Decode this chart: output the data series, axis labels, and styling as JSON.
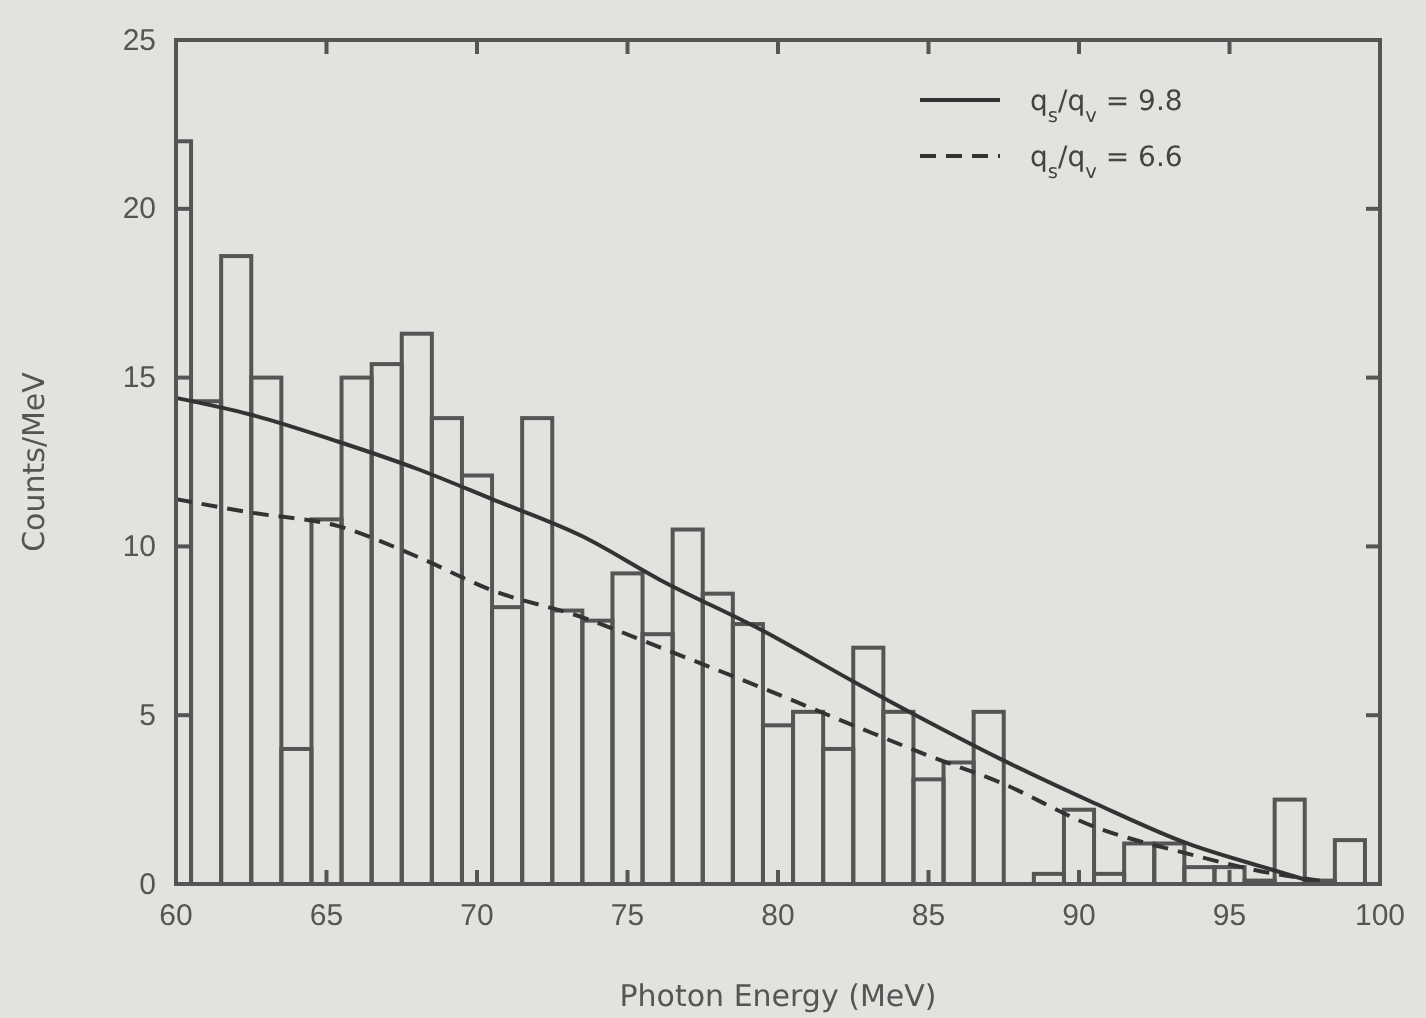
{
  "chart_data": {
    "type": "histogram",
    "xlabel": "Photon Energy (MeV)",
    "ylabel": "Counts/MeV",
    "bins": [
      60,
      60.5,
      61.5,
      62.5,
      63.5,
      64.5,
      65.5,
      66.5,
      67.5,
      68.5,
      69.5,
      70.5,
      71.5,
      72.5,
      73.5,
      74.5,
      75.5,
      76.5,
      77.5,
      78.5,
      79.5,
      80.5,
      81.5,
      82.5,
      83.5,
      84.5,
      85.5,
      86.5,
      87.5,
      88.5,
      89.5,
      90.5,
      91.5,
      92.5,
      93.5,
      94.5,
      95.5,
      96.5,
      97.5,
      98.5,
      99.5
    ],
    "values": [
      22,
      14.3,
      18.6,
      15.0,
      4.0,
      10.8,
      15.0,
      15.4,
      16.3,
      13.8,
      12.1,
      8.2,
      13.8,
      8.1,
      7.8,
      9.2,
      7.4,
      10.5,
      8.6,
      7.7,
      4.7,
      5.1,
      4.0,
      7.0,
      5.1,
      3.1,
      3.6,
      5.1,
      0,
      0.3,
      2.2,
      0.3,
      1.2,
      1.2,
      0.5,
      0.5,
      0.1,
      2.5,
      0.1,
      1.3
    ],
    "color": "#555555",
    "xlim": [
      60,
      100
    ],
    "ylim": [
      0,
      25
    ],
    "xticks": [
      60,
      65,
      70,
      75,
      80,
      85,
      90,
      95,
      100
    ],
    "yticks": [
      0,
      5,
      10,
      15,
      20,
      25
    ],
    "legend": "top right",
    "series": [
      {
        "type": "line",
        "name": "q$_{s}$/q$_{v}$ = 9.8",
        "color": "#333333",
        "line_style": "solid",
        "x": [
          60,
          62.5,
          65.4,
          68,
          70.5,
          73.5,
          76.1,
          79.5,
          82.5,
          85,
          87.4,
          90.5,
          93.6,
          96.5,
          98
        ],
        "values": [
          14.4,
          13.9,
          13.1,
          12.3,
          11.4,
          10.3,
          9.0,
          7.5,
          6.0,
          4.8,
          3.7,
          2.4,
          1.2,
          0.4,
          0
        ]
      },
      {
        "type": "line",
        "name": "q$_{s}$/q$_{v}$ = 6.6",
        "color": "#333333",
        "line_style": "dashed",
        "x": [
          60,
          62.5,
          65.4,
          68,
          70.5,
          73.5,
          76.1,
          79.5,
          82.5,
          85,
          87.4,
          90.5,
          93.6,
          96.5,
          98
        ],
        "values": [
          11.4,
          11.0,
          10.6,
          9.7,
          8.7,
          7.9,
          7.0,
          5.8,
          4.7,
          3.8,
          3.0,
          1.7,
          0.9,
          0.3,
          0.1
        ]
      }
    ]
  }
}
